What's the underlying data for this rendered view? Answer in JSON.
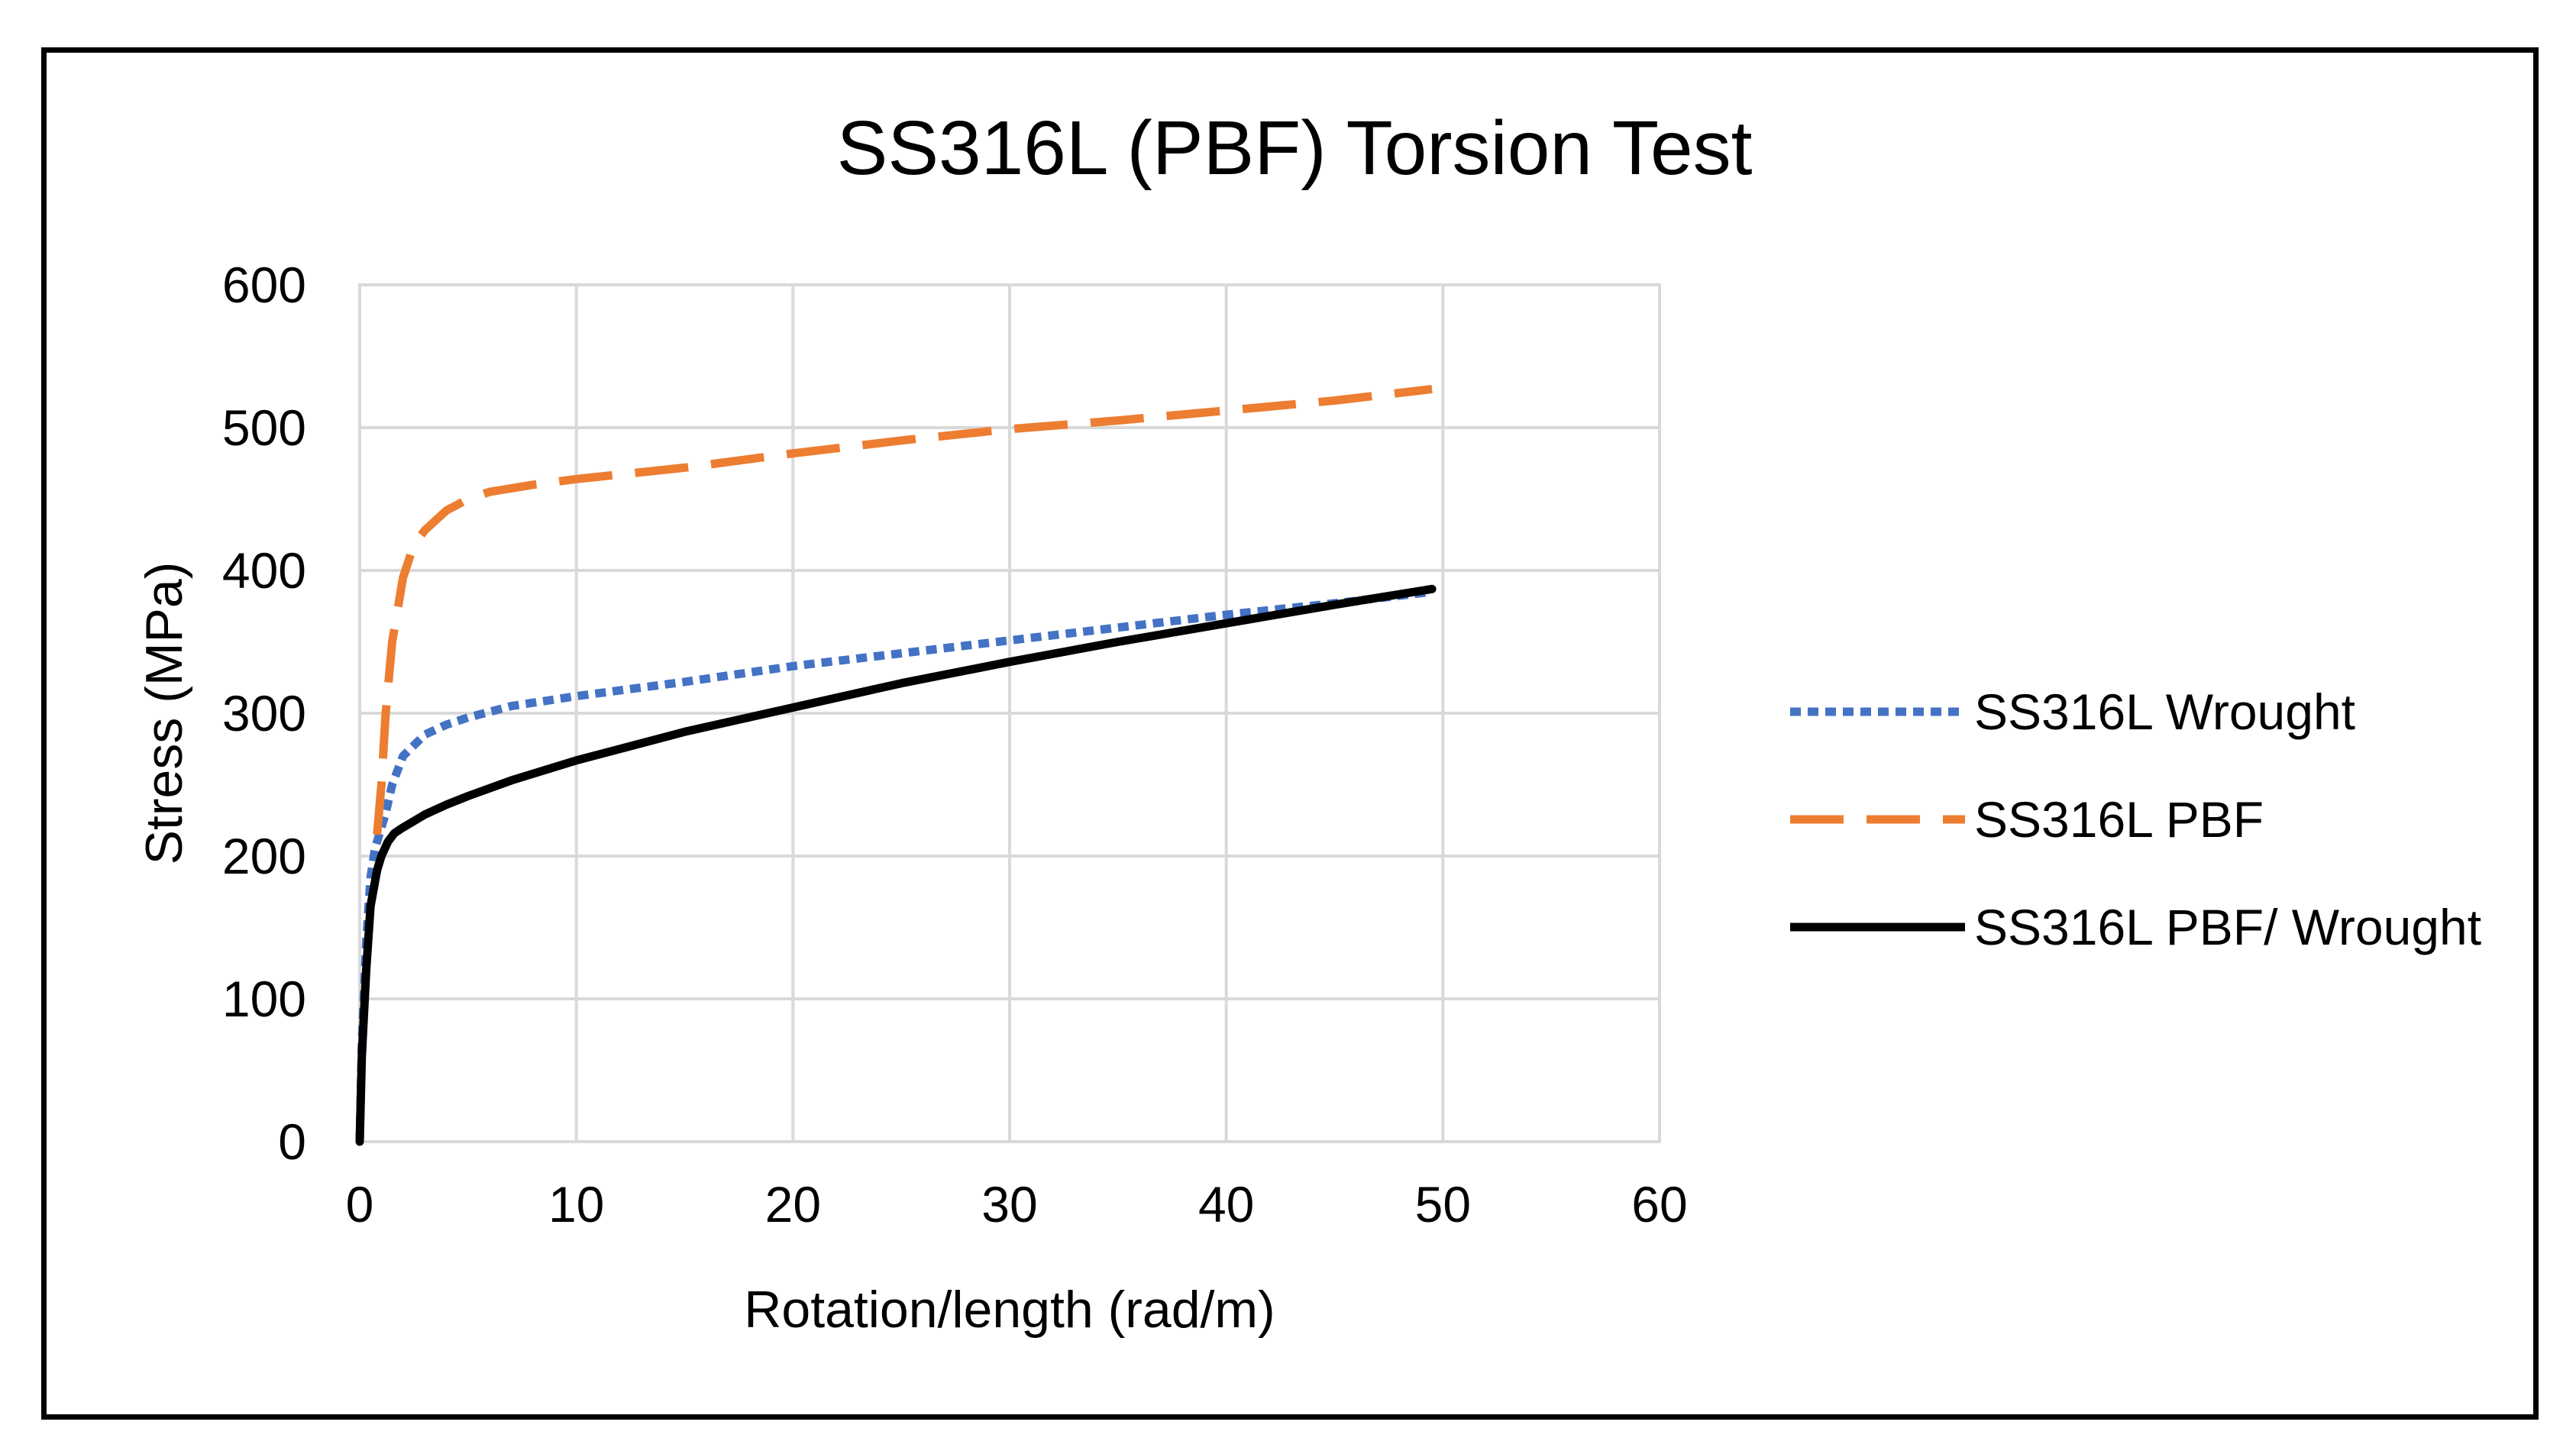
{
  "chart_data": {
    "type": "line",
    "title": "SS316L (PBF) Torsion Test",
    "xlabel": "Rotation/length (rad/m)",
    "ylabel": "Stress (MPa)",
    "xlim": [
      0,
      60
    ],
    "ylim": [
      0,
      600
    ],
    "xticks": [
      0,
      10,
      20,
      30,
      40,
      50,
      60
    ],
    "yticks": [
      0,
      100,
      200,
      300,
      400,
      500,
      600
    ],
    "grid": true,
    "legend_position": "right",
    "series": [
      {
        "name": "SS316L Wrought",
        "color": "#4472C4",
        "style": "dotted",
        "x": [
          0,
          0.1,
          0.3,
          0.5,
          0.7,
          0.9,
          1.2,
          1.5,
          2,
          3,
          4,
          5,
          7,
          10,
          15,
          20,
          25,
          30,
          35,
          40,
          45,
          49.5
        ],
        "y": [
          0,
          70,
          140,
          185,
          205,
          215,
          230,
          250,
          270,
          285,
          292,
          297,
          305,
          312,
          322,
          333,
          342,
          351,
          360,
          369,
          377,
          385
        ]
      },
      {
        "name": "SS316L PBF",
        "color": "#ED7D31",
        "style": "dashed",
        "x": [
          0.8,
          1.0,
          1.2,
          1.5,
          2,
          2.5,
          3,
          4,
          5,
          6,
          8,
          10,
          15,
          20,
          25,
          30,
          35,
          40,
          45,
          49.5
        ],
        "y": [
          215,
          250,
          300,
          350,
          395,
          418,
          428,
          442,
          450,
          455,
          460,
          464,
          472,
          482,
          491,
          499,
          505,
          512,
          519,
          527
        ]
      },
      {
        "name": "SS316L PBF/ Wrought",
        "color": "#000000",
        "style": "solid",
        "x": [
          0,
          0.1,
          0.3,
          0.5,
          0.8,
          1.0,
          1.3,
          1.6,
          2,
          3,
          4,
          5,
          7,
          10,
          15,
          20,
          25,
          30,
          35,
          40,
          45,
          49.5
        ],
        "y": [
          0,
          60,
          120,
          165,
          190,
          200,
          210,
          216,
          220,
          229,
          236,
          242,
          253,
          267,
          287,
          304,
          321,
          336,
          350,
          363,
          376,
          387
        ]
      }
    ]
  }
}
